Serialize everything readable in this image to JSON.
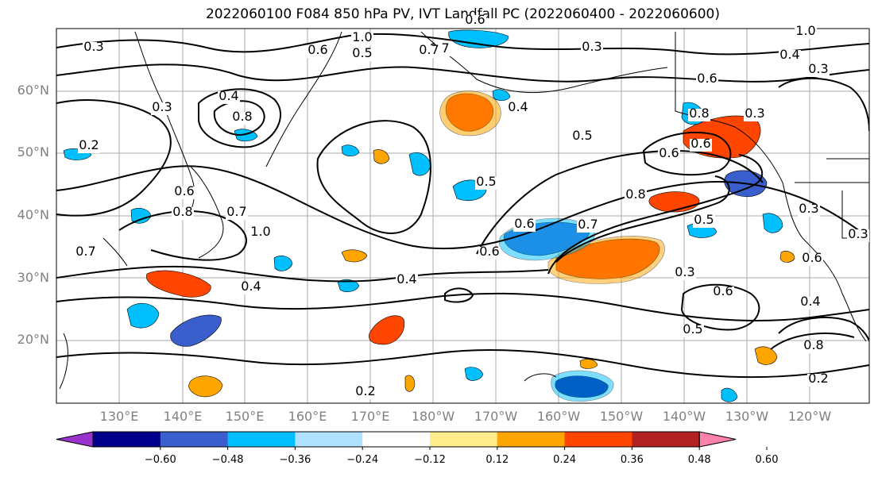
{
  "title": "2022060100 F084 850 hPa PV, IVT Landfall PC (2022060400 - 2022060600)",
  "latitude_labels": [
    "60°N",
    "50°N",
    "40°N",
    "30°N",
    "20°N"
  ],
  "longitude_labels": [
    "130°E",
    "140°E",
    "150°E",
    "160°E",
    "170°E",
    "180°W",
    "170°W",
    "160°W",
    "150°W",
    "140°W",
    "130°W",
    "120°W"
  ],
  "contour_labels": [
    "0.3",
    "0.6",
    "0.5",
    "1.0",
    "0.7",
    "0.3",
    "0.2",
    "0.4",
    "0.6",
    "0.5",
    "0.6",
    "1.0",
    "0.8",
    "0.3",
    "0.4",
    "0.5",
    "0.7",
    "0.6",
    "0.8",
    "0.8",
    "0.6",
    "0.7",
    "1.0",
    "0.6",
    "0.4",
    "0.3",
    "0.5",
    "0.8",
    "0.3",
    "0.6",
    "0.4",
    "0.7",
    "0.6",
    "0.3",
    "0.5",
    "0.8",
    "0.6",
    "0.2",
    "0.7",
    "0.4",
    "0.3",
    "0.6",
    "0.4",
    "0.3",
    "0.2"
  ],
  "colorbar": {
    "ticks": [
      "−0.60",
      "−0.48",
      "−0.36",
      "−0.24",
      "−0.12",
      "0.12",
      "0.24",
      "0.36",
      "0.48",
      "0.60"
    ],
    "colors": [
      "#9a32cd",
      "#00008b",
      "#3a5fcd",
      "#00bfff",
      "#b0e2ff",
      "#ffffff",
      "#ffec8b",
      "#ffa500",
      "#ff4500",
      "#b22222",
      "#ff82ab"
    ]
  }
}
